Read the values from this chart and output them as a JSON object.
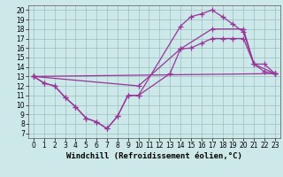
{
  "xlabel": "Windchill (Refroidissement éolien,°C)",
  "background_color": "#cce8e8",
  "line_color": "#993399",
  "xlim": [
    -0.5,
    23.5
  ],
  "ylim": [
    6.5,
    20.5
  ],
  "xticks": [
    0,
    1,
    2,
    3,
    4,
    5,
    6,
    7,
    8,
    9,
    10,
    11,
    12,
    13,
    14,
    15,
    16,
    17,
    18,
    19,
    20,
    21,
    22,
    23
  ],
  "yticks": [
    7,
    8,
    9,
    10,
    11,
    12,
    13,
    14,
    15,
    16,
    17,
    18,
    19,
    20
  ],
  "line1_x": [
    0,
    1,
    2,
    3,
    4,
    5,
    6,
    7,
    8,
    9,
    10,
    13,
    14,
    15,
    16,
    17,
    18,
    19,
    20,
    21,
    22,
    23
  ],
  "line1_y": [
    13,
    12.3,
    12,
    10.8,
    9.8,
    8.6,
    8.2,
    7.5,
    8.8,
    11.0,
    11.0,
    13.3,
    15.9,
    16.0,
    16.5,
    17.0,
    17.0,
    17.0,
    17.0,
    14.3,
    13.5,
    13.3
  ],
  "line2_x": [
    0,
    1,
    2,
    3,
    4,
    5,
    6,
    7,
    8,
    9,
    10,
    14,
    15,
    16,
    17,
    18,
    19,
    20,
    21,
    22,
    23
  ],
  "line2_y": [
    13,
    12.3,
    12,
    10.8,
    9.8,
    8.6,
    8.2,
    7.5,
    8.8,
    11.0,
    11.0,
    18.3,
    19.3,
    19.6,
    20.0,
    19.3,
    18.5,
    17.7,
    14.3,
    14.3,
    13.3
  ],
  "line3_x": [
    0,
    23
  ],
  "line3_y": [
    13,
    13.3
  ],
  "line4_x": [
    0,
    10,
    14,
    17,
    20,
    21,
    23
  ],
  "line4_y": [
    13,
    12.0,
    15.9,
    18.0,
    18.0,
    14.3,
    13.3
  ],
  "marker": "+",
  "marker_size": 4,
  "linewidth": 0.9,
  "tick_fontsize": 5.5,
  "xlabel_fontsize": 6.5
}
